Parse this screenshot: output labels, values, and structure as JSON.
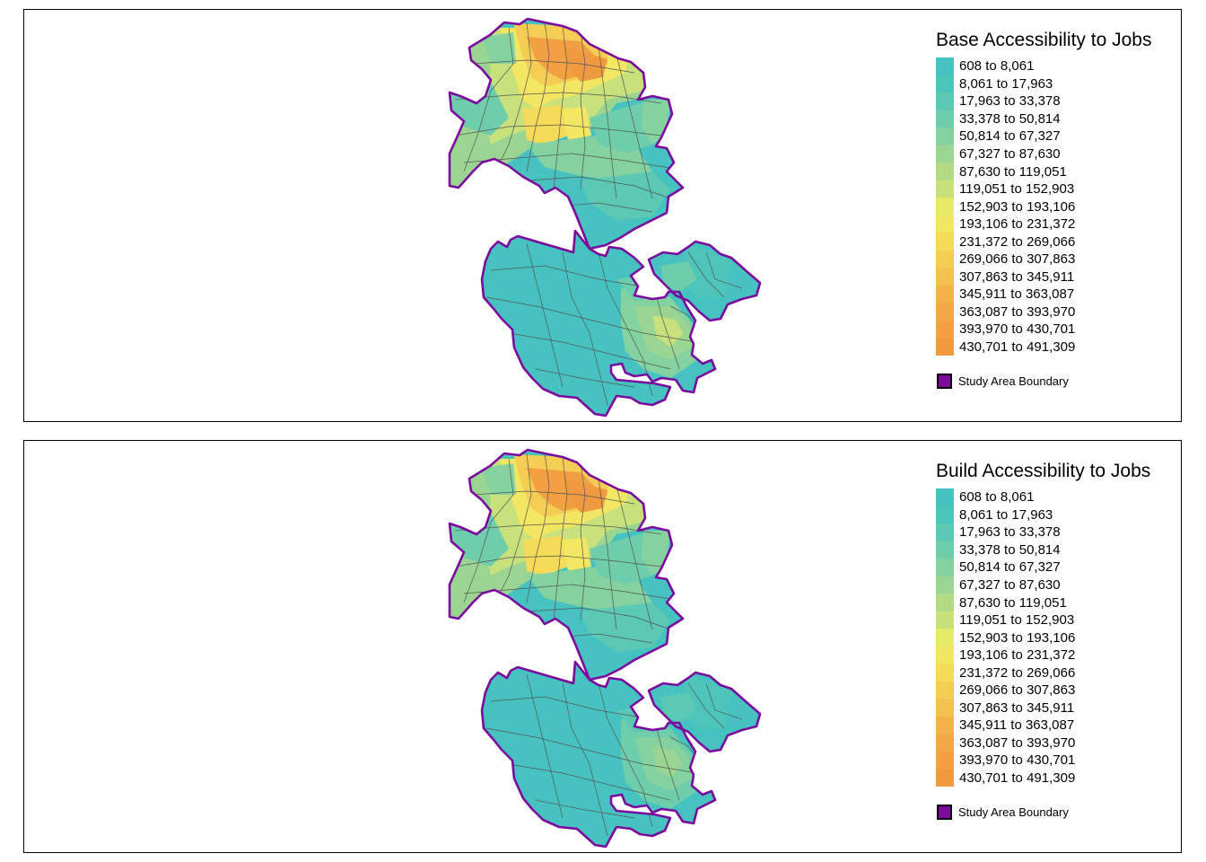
{
  "colors": {
    "boundary": "#7b0b9e",
    "classes": [
      "#46c3c0",
      "#4dc5bb",
      "#5bc9b4",
      "#6ecdab",
      "#84d29f",
      "#9ad692",
      "#b1db85",
      "#c8e17b",
      "#e6eb6a",
      "#f3e662",
      "#f6db5b",
      "#f5cd55",
      "#f4c050",
      "#f4b34a",
      "#f3a846",
      "#f2a042",
      "#f09a40"
    ]
  },
  "maps": [
    {
      "title": "Base Accessibility to Jobs",
      "legend_classes": [
        "608 to 8,061",
        "8,061 to 17,963",
        "17,963 to 33,378",
        "33,378 to 50,814",
        "50,814 to 67,327",
        "67,327 to 87,630",
        "87,630 to 119,051",
        "119,051 to 152,903",
        "152,903 to 193,106",
        "193,106 to 231,372",
        "231,372 to 269,066",
        "269,066 to 307,863",
        "307,863 to 345,911",
        "345,911 to 363,087",
        "363,087 to 393,970",
        "393,970 to 430,701",
        "430,701 to 491,309"
      ],
      "boundary_label": "Study Area Boundary"
    },
    {
      "title": "Build Accessibility to Jobs",
      "legend_classes": [
        "608 to 8,061",
        "8,061 to 17,963",
        "17,963 to 33,378",
        "33,378 to 50,814",
        "50,814 to 67,327",
        "67,327 to 87,630",
        "87,630 to 119,051",
        "119,051 to 152,903",
        "152,903 to 193,106",
        "193,106 to 231,372",
        "231,372 to 269,066",
        "269,066 to 307,863",
        "307,863 to 345,911",
        "345,911 to 363,087",
        "363,087 to 393,970",
        "393,970 to 430,701",
        "430,701 to 491,309"
      ],
      "boundary_label": "Study Area Boundary"
    }
  ]
}
